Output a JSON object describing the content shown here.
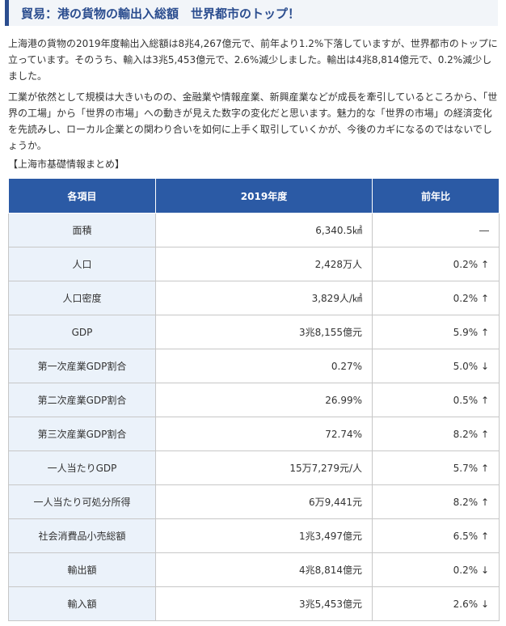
{
  "heading": "貿易：港の貨物の輸出入総額　世界都市のトップ！",
  "paragraphs": [
    "上海港の貨物の2019年度輸出入総額は8兆4,267億元で、前年より1.2%下落していますが、世界都市のトップに立っています。そのうち、輸入は3兆5,453億元で、2.6%減少しました。輸出は4兆8,814億元で、0.2%減少しました。",
    "工業が依然として規模は大きいものの、金融業や情報産業、新興産業などが成長を牽引しているところから、「世界の工場」から「世界の市場」への動きが見えた数字の変化だと思います。魅力的な「世界の市場」の経済変化を先読みし、ローカル企業との関わり合いを如何に上手く取引していくかが、今後のカギになるのではないでしょうか。"
  ],
  "table_caption": "【上海市基礎情報まとめ】",
  "table": {
    "headers": [
      "各項目",
      "2019年度",
      "前年比"
    ],
    "rows": [
      [
        "面積",
        "6,340.5㎢",
        "―"
      ],
      [
        "人口",
        "2,428万人",
        "0.2% ↑"
      ],
      [
        "人口密度",
        "3,829人/㎢",
        "0.2% ↑"
      ],
      [
        "GDP",
        "3兆8,155億元",
        "5.9% ↑"
      ],
      [
        "第一次産業GDP割合",
        "0.27%",
        "5.0% ↓"
      ],
      [
        "第二次産業GDP割合",
        "26.99%",
        "0.5% ↑"
      ],
      [
        "第三次産業GDP割合",
        "72.74%",
        "8.2% ↑"
      ],
      [
        "一人当たりGDP",
        "15万7,279元/人",
        "5.7% ↑"
      ],
      [
        "一人当たり可処分所得",
        "6万9,441元",
        "8.2% ↑"
      ],
      [
        "社会消費品小売総額",
        "1兆3,497億元",
        "6.5% ↑"
      ],
      [
        "輸出額",
        "4兆8,814億元",
        "0.2% ↓"
      ],
      [
        "輸入額",
        "3兆5,453億元",
        "2.6% ↓"
      ]
    ]
  }
}
